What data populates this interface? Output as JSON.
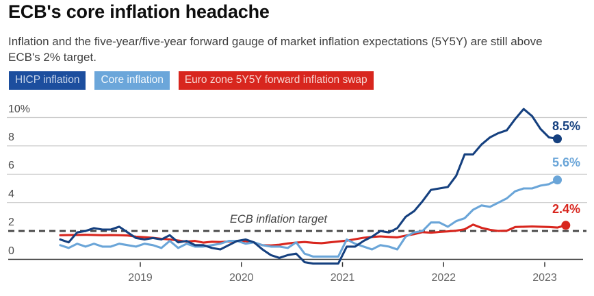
{
  "header": {
    "title": "ECB's core inflation headache",
    "subtitle": "Inflation and the five-year/five-year forward gauge of market inflation expectations (5Y5Y) are still above ECB's 2% target."
  },
  "legend": [
    {
      "label": "HICP inflation",
      "color": "#1c4e9e",
      "text_color": "#c9d6eb"
    },
    {
      "label": "Core inflation",
      "color": "#6ba6da",
      "text_color": "#f2f8fd"
    },
    {
      "label": "Euro zone 5Y5Y forward inflation swap",
      "color": "#d8261e",
      "text_color": "#f8d7d3"
    }
  ],
  "chart_data": {
    "type": "line",
    "x_unit": "month",
    "x_range": [
      "2018-03",
      "2023-03"
    ],
    "x_ticks": [
      "2019",
      "2020",
      "2021",
      "2022",
      "2023"
    ],
    "y_ticks": [
      {
        "label": "10%",
        "value": 10
      },
      {
        "label": "8",
        "value": 8
      },
      {
        "label": "6",
        "value": 6
      },
      {
        "label": "4",
        "value": 4
      },
      {
        "label": "2",
        "value": 2
      },
      {
        "label": "0",
        "value": 0
      }
    ],
    "gridline_values": [
      10,
      8,
      6,
      4
    ],
    "ylim": [
      -0.6,
      11
    ],
    "target_line": {
      "label": "ECB inflation target",
      "value": 2
    },
    "series": [
      {
        "name": "HICP inflation",
        "color": "#15407f",
        "start_year": 2018,
        "start_month": 3,
        "end_label": "8.5%",
        "end_value": 8.5,
        "values": [
          1.4,
          1.2,
          1.9,
          2.0,
          2.2,
          2.1,
          2.1,
          2.3,
          1.9,
          1.5,
          1.4,
          1.5,
          1.4,
          1.7,
          1.2,
          1.3,
          1.0,
          1.0,
          0.8,
          0.7,
          1.0,
          1.3,
          1.4,
          1.2,
          0.7,
          0.3,
          0.1,
          0.3,
          0.4,
          -0.2,
          -0.3,
          -0.3,
          -0.3,
          -0.3,
          0.9,
          0.9,
          1.3,
          1.6,
          2.0,
          1.9,
          2.2,
          3.0,
          3.4,
          4.1,
          4.9,
          5.0,
          5.1,
          5.9,
          7.4,
          7.4,
          8.1,
          8.6,
          8.9,
          9.1,
          9.9,
          10.6,
          10.1,
          9.2,
          8.6,
          8.5
        ]
      },
      {
        "name": "Core inflation",
        "color": "#6aa5d8",
        "start_year": 2018,
        "start_month": 3,
        "end_label": "5.6%",
        "end_value": 5.6,
        "values": [
          1.0,
          0.8,
          1.1,
          0.9,
          1.1,
          0.9,
          0.9,
          1.1,
          1.0,
          0.9,
          1.1,
          1.0,
          0.8,
          1.3,
          0.8,
          1.1,
          0.9,
          0.9,
          1.0,
          1.1,
          1.3,
          1.3,
          1.1,
          1.2,
          1.0,
          0.9,
          0.9,
          0.8,
          1.2,
          0.4,
          0.2,
          0.2,
          0.2,
          0.2,
          1.4,
          1.1,
          0.9,
          0.7,
          1.0,
          0.9,
          0.7,
          1.6,
          1.9,
          2.0,
          2.6,
          2.6,
          2.3,
          2.7,
          2.9,
          3.5,
          3.8,
          3.7,
          4.0,
          4.3,
          4.8,
          5.0,
          5.0,
          5.2,
          5.3,
          5.6
        ]
      },
      {
        "name": "Euro zone 5Y5Y forward inflation swap",
        "color": "#d8261e",
        "start_year": 2018,
        "start_month": 3,
        "end_label": "2.4%",
        "end_value": 2.4,
        "values": [
          1.7,
          1.71,
          1.72,
          1.73,
          1.72,
          1.7,
          1.71,
          1.7,
          1.68,
          1.6,
          1.56,
          1.52,
          1.45,
          1.4,
          1.33,
          1.25,
          1.3,
          1.18,
          1.24,
          1.22,
          1.26,
          1.3,
          1.28,
          1.18,
          1.0,
          0.98,
          1.03,
          1.12,
          1.18,
          1.22,
          1.17,
          1.14,
          1.2,
          1.26,
          1.32,
          1.42,
          1.52,
          1.58,
          1.62,
          1.58,
          1.55,
          1.67,
          1.78,
          1.92,
          1.88,
          1.93,
          1.97,
          2.02,
          2.12,
          2.45,
          2.22,
          2.08,
          2.0,
          2.02,
          2.28,
          2.3,
          2.32,
          2.3,
          2.28,
          2.24,
          2.4
        ]
      }
    ],
    "colors": {
      "grid": "#cccccc",
      "zero_axis": "#333333",
      "target": "#4d4d4d",
      "tick": "#333333"
    }
  }
}
